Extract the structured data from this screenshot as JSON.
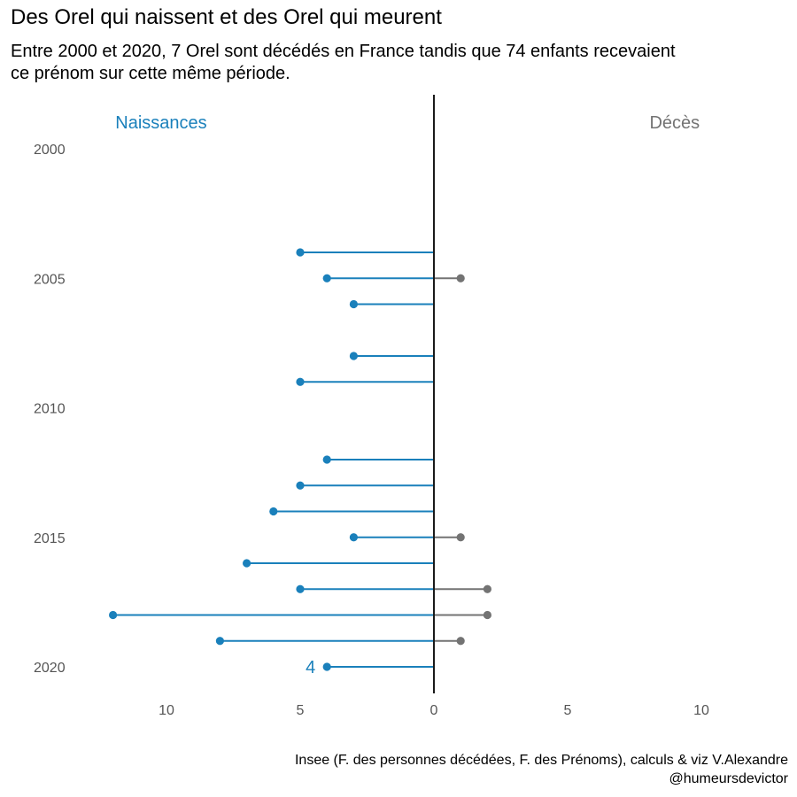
{
  "title": "Des Orel qui naissent et des Orel qui meurent",
  "subtitle": "Entre 2000 et 2020, 7 Orel sont décédés en France tandis que 74 enfants recevaient ce prénom sur cette même période.",
  "caption": "Insee (F. des personnes décédées, F. des Prénoms), calculs & viz V.Alexandre @humeursdevictor",
  "colors": {
    "births": "#1a80bb",
    "deaths": "#737373",
    "axis": "#000000",
    "tick_text": "#555555"
  },
  "chart_data": {
    "type": "lollipop",
    "title": "Des Orel qui naissent et des Orel qui meurent",
    "xlabel": "",
    "ylabel": "",
    "xlim": [
      -13,
      13
    ],
    "ylim": [
      2000,
      2020
    ],
    "x_ticks": [
      {
        "value": -10,
        "label": "10"
      },
      {
        "value": -5,
        "label": "5"
      },
      {
        "value": 0,
        "label": "0"
      },
      {
        "value": 5,
        "label": "5"
      },
      {
        "value": 10,
        "label": "10"
      }
    ],
    "y_ticks": [
      {
        "value": 2000,
        "label": "2000"
      },
      {
        "value": 2005,
        "label": "2005"
      },
      {
        "value": 2010,
        "label": "2010"
      },
      {
        "value": 2015,
        "label": "2015"
      },
      {
        "value": 2020,
        "label": "2020"
      }
    ],
    "series": [
      {
        "name": "Naissances",
        "side": "left",
        "points": [
          {
            "year": 2004,
            "value": 5
          },
          {
            "year": 2005,
            "value": 4
          },
          {
            "year": 2006,
            "value": 3
          },
          {
            "year": 2008,
            "value": 3
          },
          {
            "year": 2009,
            "value": 5
          },
          {
            "year": 2012,
            "value": 4
          },
          {
            "year": 2013,
            "value": 5
          },
          {
            "year": 2014,
            "value": 6
          },
          {
            "year": 2015,
            "value": 3
          },
          {
            "year": 2016,
            "value": 7
          },
          {
            "year": 2017,
            "value": 5
          },
          {
            "year": 2018,
            "value": 12
          },
          {
            "year": 2019,
            "value": 8
          },
          {
            "year": 2020,
            "value": 4
          }
        ]
      },
      {
        "name": "Décès",
        "side": "right",
        "points": [
          {
            "year": 2005,
            "value": 1
          },
          {
            "year": 2015,
            "value": 1
          },
          {
            "year": 2017,
            "value": 2
          },
          {
            "year": 2018,
            "value": 2
          },
          {
            "year": 2019,
            "value": 1
          }
        ]
      }
    ],
    "annotations": [
      {
        "year": 2020,
        "value": 4,
        "series": "Naissances",
        "text": "4"
      }
    ]
  }
}
